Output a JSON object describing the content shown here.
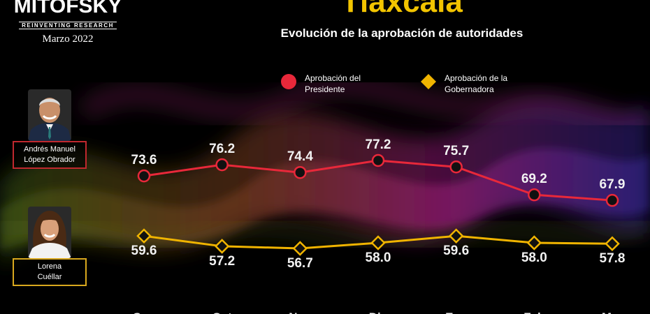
{
  "header": {
    "brand_name": "MITOFSKY",
    "brand_tagline": "REINVENTING RESEARCH",
    "date": "Marzo 2022",
    "title": "Tlaxcala",
    "subtitle": "Evolución de la aprobación de autoridades"
  },
  "legend": [
    {
      "line1": "Aprobación del",
      "line2": "Presidente",
      "color": "#e8283a",
      "marker": "circle"
    },
    {
      "line1": "Aprobación de la",
      "line2": "Gobernadora",
      "color": "#f0b400",
      "marker": "diamond"
    }
  ],
  "people": [
    {
      "line1": "Andrés Manuel",
      "line2": "López Obrador",
      "border_color": "#c0282e"
    },
    {
      "line1": "Lorena",
      "line2": "Cuéllar",
      "border_color": "#d9a81e"
    }
  ],
  "chart_data": {
    "type": "line",
    "categories": [
      "Sep",
      "Oct",
      "Nov",
      "Dic",
      "Ene",
      "Feb",
      "Mar"
    ],
    "series": [
      {
        "name": "Aprobación del Presidente",
        "values": [
          73.6,
          76.2,
          74.4,
          77.2,
          75.7,
          69.2,
          67.9
        ],
        "color": "#e8283a",
        "marker": "circle"
      },
      {
        "name": "Aprobación de la Gobernadora",
        "values": [
          59.6,
          57.2,
          56.7,
          58.0,
          59.6,
          58.0,
          57.8
        ],
        "color": "#f0b400",
        "marker": "diamond"
      }
    ],
    "title": "Evolución de la aprobación de autoridades",
    "grid": false,
    "legend_position": "top"
  }
}
